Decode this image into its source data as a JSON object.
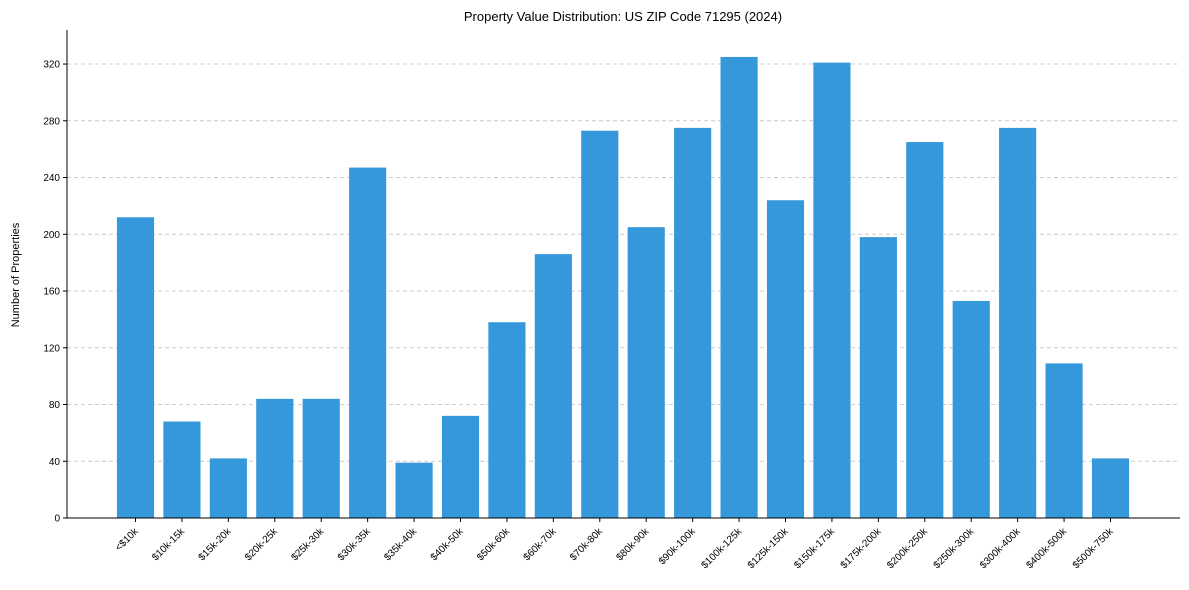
{
  "chart_data": {
    "type": "bar",
    "title": "Property Value Distribution: US ZIP Code 71295 (2024)",
    "xlabel": "",
    "ylabel": "Number of Properties",
    "ylim": [
      0,
      344
    ],
    "yticks": [
      0,
      40,
      80,
      120,
      160,
      200,
      240,
      280,
      320
    ],
    "grid": "y-dashed",
    "bar_color": "#3498db",
    "categories": [
      "<$10k",
      "$10k-15k",
      "$15k-20k",
      "$20k-25k",
      "$25k-30k",
      "$30k-35k",
      "$35k-40k",
      "$40k-50k",
      "$50k-60k",
      "$60k-70k",
      "$70k-80k",
      "$80k-90k",
      "$90k-100k",
      "$100k-125k",
      "$125k-150k",
      "$150k-175k",
      "$175k-200k",
      "$200k-250k",
      "$250k-300k",
      "$300k-400k",
      "$400k-500k",
      "$500k-750k"
    ],
    "values": [
      212,
      68,
      42,
      84,
      84,
      247,
      39,
      72,
      138,
      186,
      273,
      205,
      275,
      325,
      224,
      321,
      198,
      265,
      153,
      275,
      109,
      42
    ]
  }
}
